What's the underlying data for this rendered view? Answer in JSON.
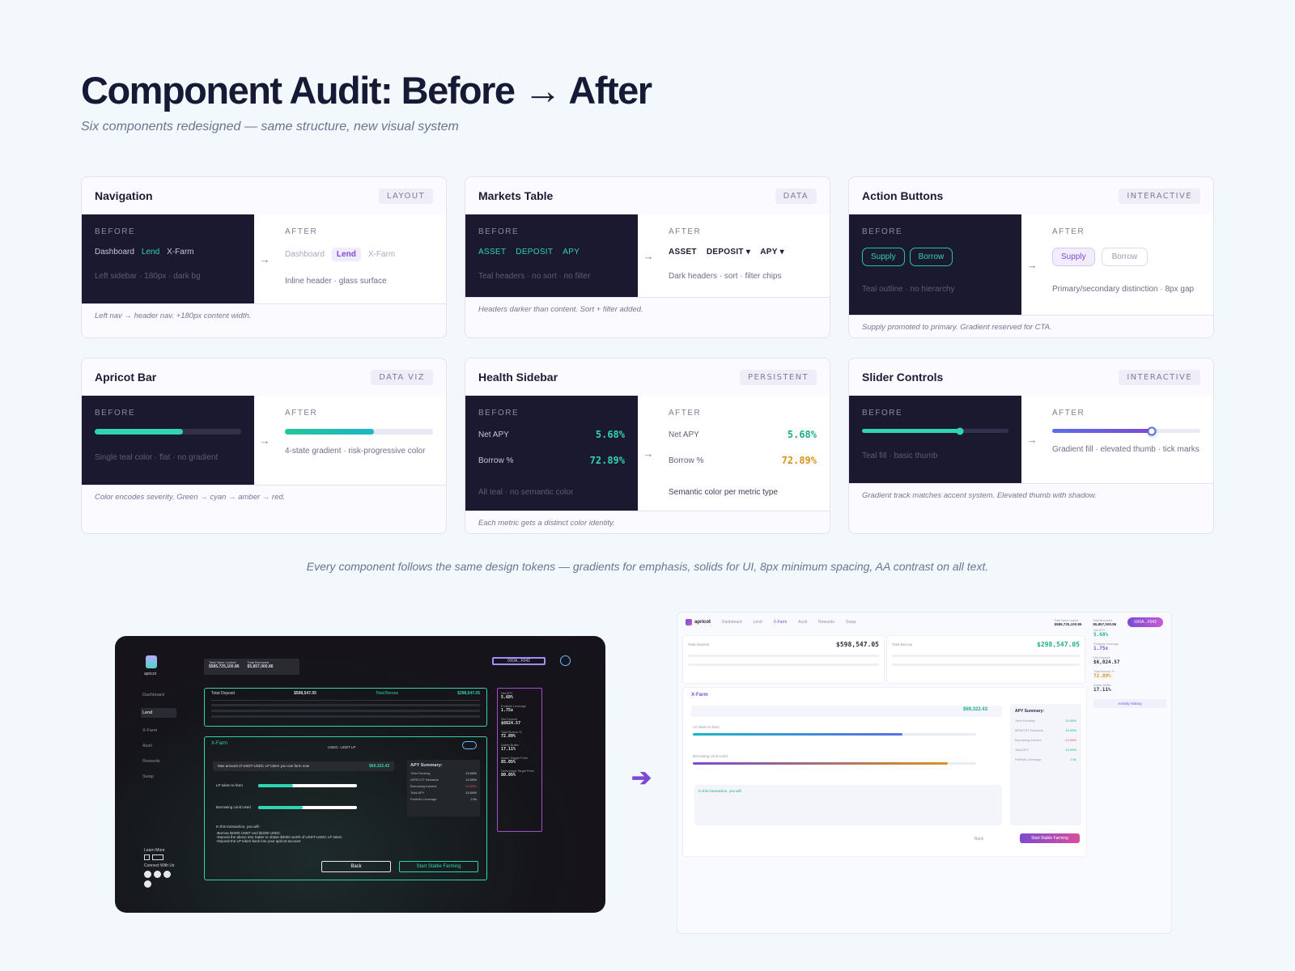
{
  "page": {
    "title": "Component Audit: Before → After",
    "subtitle": "Six components redesigned — same structure, new visual system",
    "footer_note": "Every component follows the same design tokens — gradients for emphasis, solids for UI, 8px minimum spacing, AA contrast on all text.",
    "before_label": "BEFORE",
    "after_label": "AFTER"
  },
  "colors": {
    "teal": "#2fd4b0",
    "purple": "#7c4bd3",
    "amber": "#d9931c",
    "dark_bg": "#1b1930"
  },
  "cards": {
    "navigation": {
      "title": "Navigation",
      "tag": "LAYOUT",
      "before_items": [
        "Dashboard",
        "Lend",
        "X-Farm"
      ],
      "before_note": "Left sidebar · 180px · dark bg",
      "after_items": [
        "Dashboard",
        "Lend",
        "X-Farm"
      ],
      "after_note": "Inline header · glass surface",
      "footer": "Left nav → header nav. +180px content width."
    },
    "markets": {
      "title": "Markets Table",
      "tag": "DATA",
      "before_headers": [
        "ASSET",
        "DEPOSIT",
        "APY"
      ],
      "before_note": "Teal headers · no sort · no filter",
      "after_headers": [
        "ASSET",
        "DEPOSIT ▾",
        "APY ▾"
      ],
      "after_note": "Dark headers · sort · filter chips",
      "footer": "Headers darker than content. Sort + filter added."
    },
    "buttons": {
      "title": "Action Buttons",
      "tag": "INTERACTIVE",
      "before_primary": "Supply",
      "before_secondary": "Borrow",
      "before_note": "Teal outline · no hierarchy",
      "after_primary": "Supply",
      "after_secondary": "Borrow",
      "after_note": "Primary/secondary distinction · 8px gap",
      "footer": "Supply promoted to primary. Gradient reserved for CTA."
    },
    "apricot_bar": {
      "title": "Apricot Bar",
      "tag": "DATA VIZ",
      "before_fill": 0.6,
      "after_fill": 0.6,
      "before_note": "Single teal color · flat · no gradient",
      "after_note": "4-state gradient · risk-progressive color",
      "footer": "Color encodes severity. Green → cyan → amber → red."
    },
    "health": {
      "title": "Health Sidebar",
      "tag": "PERSISTENT",
      "metrics": [
        {
          "label": "Net APY",
          "value": "5.68%"
        },
        {
          "label": "Borrow %",
          "value": "72.89%"
        }
      ],
      "before_note": "All teal · no semantic color",
      "after_note": "Semantic color per metric type",
      "footer": "Each metric gets a distinct color identity."
    },
    "slider": {
      "title": "Slider Controls",
      "tag": "INTERACTIVE",
      "before_fill": 0.67,
      "after_fill": 0.67,
      "before_note": "Teal fill · basic thumb",
      "after_note": "Gradient fill · elevated thumb · tick marks",
      "footer": "Gradient track matches accent system. Elevated thumb with shadow."
    }
  },
  "shot_before": {
    "logo": "apricot",
    "nav": [
      "Dashboard",
      "Lend",
      "X-Farm",
      "Assit",
      "Rewords",
      "Swap"
    ],
    "tvl_label": "Total Value Locked",
    "tvl": "$585,725,100.86",
    "tb_label": "Total Borrowed",
    "tb": "$5,857,000.86",
    "address": "0X0A...F042",
    "total_deposit_label": "Total Deposit",
    "total_deposit": "$598,547.05",
    "total_borrow_label": "Total Borrow",
    "total_borrow": "$298,547.05",
    "xfarm": "X-Farm",
    "pair": "USDC- USDT LP",
    "max_text": "Max amount of USDT-USDC LP token you can farm now",
    "max_val": "$69,322.43",
    "lp_label": "LP token to farm",
    "borrow_label": "Borrowing Limit Used",
    "apy_summary": "APY Summary:",
    "summary_rows": [
      {
        "label": "Yield Farming",
        "value": "10.05%"
      },
      {
        "label": "APRICOT Rewards",
        "value": "10.05%"
      },
      {
        "label": "Borrowing Interest",
        "value": "-10.05%"
      },
      {
        "label": "Total APY",
        "value": "10.05%"
      },
      {
        "label": "Portfolio Leverage",
        "value": "2.5x"
      }
    ],
    "txn_title": "In this transaction, you will:",
    "txn_lines": [
      "-Borrow $1000 USDT and $1000 USDC",
      "-Deposit the above into Saber to obtain $2000 worth of USDT-USDC LP token",
      "-Deposit the LP token back into your apricot account"
    ],
    "back": "Back",
    "start": "Start Stable Farming",
    "side_metrics": [
      {
        "label": "Net APY",
        "value": "5.68%"
      },
      {
        "label": "Portfolio Leverage",
        "value": "1.75x"
      },
      {
        "label": "Net Deposit",
        "value": "$6824.57"
      },
      {
        "label": "Total Borrow %",
        "value": "72.89%"
      },
      {
        "label": "Safety Buffer",
        "value": "17.11%"
      },
      {
        "label": "Assist Trigger Point",
        "value": "85.05%"
      },
      {
        "label": "Deleverage Target Point",
        "value": "80.05%"
      }
    ],
    "learn_more": "Learn More",
    "connect": "Connect With Us"
  },
  "shot_after": {
    "logo": "apricot",
    "nav": [
      "Dashboard",
      "Lend",
      "X-Farm",
      "Assit",
      "Rewards",
      "Swap"
    ],
    "tvl_label": "Total Value Locked",
    "tvl": "$585,725,100.86",
    "tb_label": "Total Borrowed",
    "tb": "$5,857,000.86",
    "address": "0X0A...F042",
    "total_deposit_label": "Total Deposit",
    "total_deposit": "$598,547.05",
    "total_borrow_label": "Total Borrow",
    "total_borrow": "$298,547.05",
    "side_metrics": [
      {
        "label": "Net APY",
        "value": "5.68%"
      },
      {
        "label": "Portfolio Leverage",
        "value": "1.75x"
      },
      {
        "label": "Net Deposit",
        "value": "$6,824.57"
      },
      {
        "label": "Total Borrow %",
        "value": "72.89%"
      },
      {
        "label": "Safety Buffer",
        "value": "17.11%"
      }
    ],
    "xfarm": "X-Farm",
    "max_val": "$69,322.43",
    "apy_summary": "APY Summary:",
    "summary_rows": [
      {
        "label": "Yield Farming",
        "value": "10.05%"
      },
      {
        "label": "APRICOT Rewards",
        "value": "10.05%"
      },
      {
        "label": "Borrowing Interest",
        "value": "-10.05%"
      },
      {
        "label": "Total APY",
        "value": "10.05%"
      },
      {
        "label": "Portfolio Leverage",
        "value": "2.5x"
      }
    ],
    "lp_label": "LP token to farm",
    "borrow_label": "Borrowing Limit Used",
    "txn_title": "In this transaction, you will:",
    "back": "Back",
    "start": "Start Stable Farming",
    "activity": "Activity History"
  }
}
